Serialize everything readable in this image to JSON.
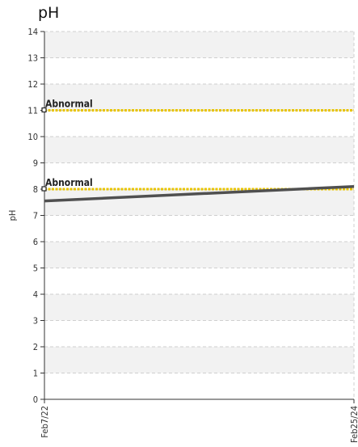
{
  "chart_data": {
    "type": "line",
    "title": "pH",
    "xlabel": "",
    "ylabel": "pH",
    "ylim": [
      0,
      14
    ],
    "yticks": [
      "0",
      "1",
      "2",
      "3",
      "4",
      "5",
      "6",
      "7",
      "8",
      "9",
      "10",
      "11",
      "12",
      "13",
      "14"
    ],
    "xticks": [
      "Feb7/22",
      "Feb25/24"
    ],
    "x": [
      "2022-02-07",
      "2024-02-25"
    ],
    "series": [
      {
        "values": [
          7.55,
          8.1
        ],
        "color": "#505050"
      }
    ],
    "reference_lines": [
      {
        "label": "Abnormal",
        "value": 11,
        "color": "#e8c400"
      },
      {
        "label": "Abnormal",
        "value": 8,
        "color": "#e8c400"
      }
    ],
    "grid": true,
    "band_colors": [
      "#f2f2f2",
      "#ffffff"
    ]
  }
}
